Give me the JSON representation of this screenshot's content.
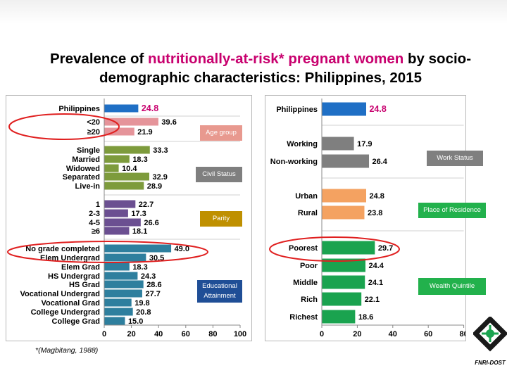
{
  "slide": {
    "title_part1": "Prevalence of ",
    "title_highlight": "nutritionally-at-risk* pregnant women",
    "title_part2": " by socio-demographic characteristics: Philippines, 2015",
    "footnote": "*(Magbitang, 1988)",
    "logo_text": "FNRI-DOST"
  },
  "colors": {
    "highlight": "#c8006e",
    "philippines": "#1f6fc5",
    "age": "#e5949a",
    "civil": "#7d9b3c",
    "parity": "#6b4f91",
    "education": "#2e7f9e",
    "work": "#7f7f7f",
    "residence": "#f4a261",
    "wealth": "#1aa34f",
    "age_box": "#e8998f",
    "civil_box": "#7f7f7f",
    "parity_box": "#bf9000",
    "education_box": "#1f4e96",
    "work_box": "#7f7f7f",
    "residence_box": "#22b14c",
    "wealth_box": "#22b14c",
    "circle": "#e02020"
  },
  "chart_data": [
    {
      "type": "bar",
      "orientation": "horizontal",
      "xlim": [
        0,
        100
      ],
      "xticks": [
        0,
        20,
        40,
        60,
        80,
        100
      ],
      "groups": [
        {
          "label": "",
          "color_key": "philippines",
          "categories": [
            "Philippines"
          ],
          "values": [
            24.8
          ],
          "highlight": true
        },
        {
          "label": "Age group",
          "color_key": "age",
          "categories": [
            "<20",
            "≥20"
          ],
          "values": [
            39.6,
            21.9
          ]
        },
        {
          "label": "Civil Status",
          "color_key": "civil",
          "categories": [
            "Single",
            "Married",
            "Widowed",
            "Separated",
            "Live-in"
          ],
          "values": [
            33.3,
            18.3,
            10.4,
            32.9,
            28.9
          ]
        },
        {
          "label": "Parity",
          "color_key": "parity",
          "categories": [
            "1",
            "2-3",
            "4-5",
            "≥6"
          ],
          "values": [
            22.7,
            17.3,
            26.6,
            18.1
          ]
        },
        {
          "label": "Educational Attainment",
          "color_key": "education",
          "categories": [
            "No grade completed",
            "Elem Undergrad",
            "Elem Grad",
            "HS Undergrad",
            "HS Grad",
            "Vocational Undergrad",
            "Vocational Grad",
            "College Undergrad",
            "College Grad"
          ],
          "values": [
            49.0,
            30.5,
            18.3,
            24.3,
            28.6,
            27.7,
            19.8,
            20.8,
            15.0
          ]
        }
      ]
    },
    {
      "type": "bar",
      "orientation": "horizontal",
      "xlim": [
        0,
        80
      ],
      "xticks": [
        0,
        20,
        40,
        60,
        80
      ],
      "groups": [
        {
          "label": "",
          "color_key": "philippines",
          "categories": [
            "Philippines"
          ],
          "values": [
            24.8
          ],
          "highlight": true
        },
        {
          "label": "Work Status",
          "color_key": "work",
          "categories": [
            "Working",
            "Non-working"
          ],
          "values": [
            17.9,
            26.4
          ]
        },
        {
          "label": "Place of Residence",
          "color_key": "residence",
          "categories": [
            "Urban",
            "Rural"
          ],
          "values": [
            24.8,
            23.8
          ]
        },
        {
          "label": "Wealth Quintile",
          "color_key": "wealth",
          "categories": [
            "Poorest",
            "Poor",
            "Middle",
            "Rich",
            "Richest"
          ],
          "values": [
            29.7,
            24.4,
            24.1,
            22.1,
            18.6
          ]
        }
      ]
    }
  ]
}
